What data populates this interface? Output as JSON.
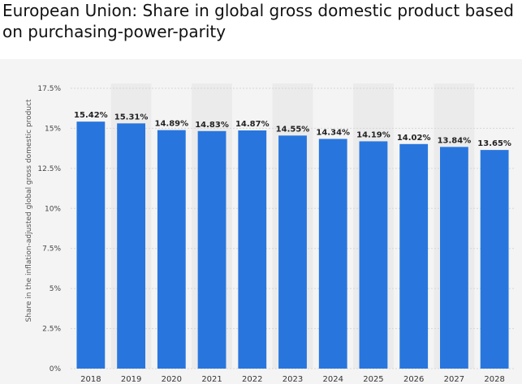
{
  "page": {
    "title": "European Union: Share in global gross domestic product based on purchasing-power-parity"
  },
  "chart_data": {
    "type": "bar",
    "title": "European Union: Share in global gross domestic product based on purchasing-power-parity",
    "xlabel": "",
    "ylabel": "Share in the inflation-adjusted global gross domestic product",
    "categories": [
      "2018",
      "2019",
      "2020",
      "2021",
      "2022",
      "2023",
      "2024",
      "2025",
      "2026",
      "2027",
      "2028"
    ],
    "values": [
      15.42,
      15.31,
      14.89,
      14.83,
      14.87,
      14.55,
      14.34,
      14.19,
      14.02,
      13.84,
      13.65
    ],
    "value_labels": [
      "15.42%",
      "15.31%",
      "14.89%",
      "14.83%",
      "14.87%",
      "14.55%",
      "14.34%",
      "14.19%",
      "14.02%",
      "13.84%",
      "13.65%"
    ],
    "ylim": [
      0,
      17.5
    ],
    "yticks": [
      0,
      2.5,
      5,
      7.5,
      10,
      12.5,
      15,
      17.5
    ],
    "ytick_labels": [
      "0%",
      "2.5%",
      "5%",
      "7.5%",
      "10%",
      "12.5%",
      "15%",
      "17.5%"
    ],
    "grid": true,
    "bar_color": "#2876dd",
    "background_color": "#f4f4f4",
    "alternating_band_color": "#ebebeb"
  }
}
